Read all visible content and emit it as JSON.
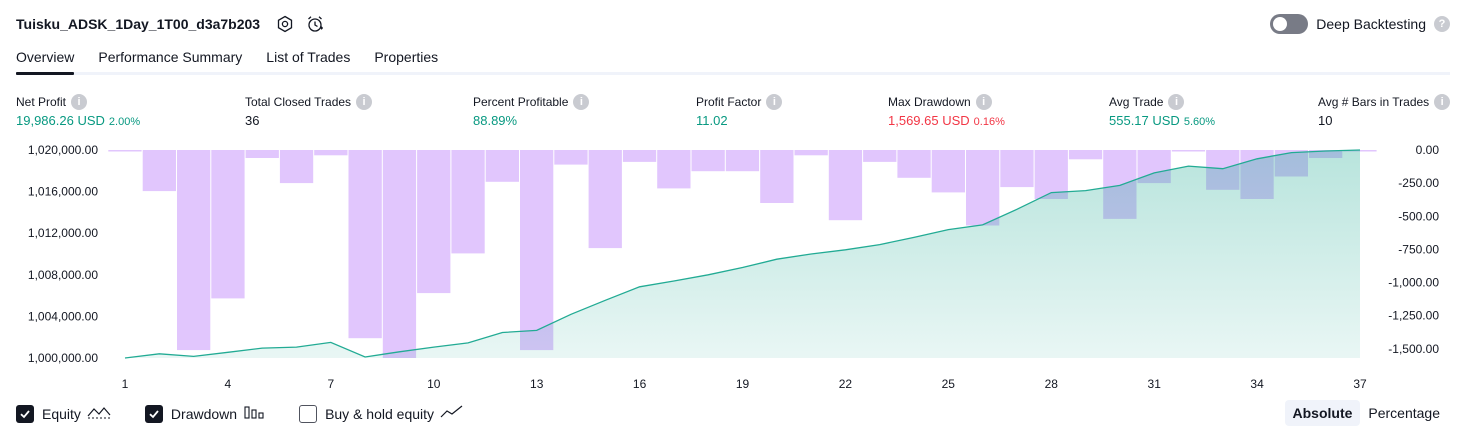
{
  "header": {
    "title": "Tuisku_ADSK_1Day_1T00_d3a7b203",
    "settings_icon": "settings-hexagon-icon",
    "alert_icon": "alarm-clock-icon",
    "deep_backtesting_label": "Deep Backtesting",
    "deep_backtesting_on": false,
    "help_glyph": "?"
  },
  "tabs": [
    {
      "label": "Overview",
      "active": true
    },
    {
      "label": "Performance Summary",
      "active": false
    },
    {
      "label": "List of Trades",
      "active": false
    },
    {
      "label": "Properties",
      "active": false
    }
  ],
  "stats": {
    "net_profit": {
      "label": "Net Profit",
      "value": "19,986.26 USD",
      "pct": "2.00%"
    },
    "total_closed_trades": {
      "label": "Total Closed Trades",
      "value": "36"
    },
    "percent_profitable": {
      "label": "Percent Profitable",
      "value": "88.89%"
    },
    "profit_factor": {
      "label": "Profit Factor",
      "value": "11.02"
    },
    "max_drawdown": {
      "label": "Max Drawdown",
      "value": "1,569.65 USD",
      "pct": "0.16%"
    },
    "avg_trade": {
      "label": "Avg Trade",
      "value": "555.17 USD",
      "pct": "5.60%"
    },
    "avg_bars": {
      "label": "Avg # Bars in Trades",
      "value": "10"
    }
  },
  "colors": {
    "profit_green": "#089981",
    "loss_red": "#f23645",
    "equity_line": "#22ab94",
    "drawdown_bar": "#e1c6fd",
    "text": "#131722"
  },
  "chart_data": {
    "type": "line",
    "x": [
      1,
      2,
      3,
      4,
      5,
      6,
      7,
      8,
      9,
      10,
      11,
      12,
      13,
      14,
      15,
      16,
      17,
      18,
      19,
      20,
      21,
      22,
      23,
      24,
      25,
      26,
      27,
      28,
      29,
      30,
      31,
      32,
      33,
      34,
      35,
      36,
      37
    ],
    "x_ticks": [
      "1",
      "4",
      "7",
      "10",
      "13",
      "16",
      "19",
      "22",
      "25",
      "28",
      "31",
      "34",
      "37"
    ],
    "y_left_ticks": [
      "1,020,000.00",
      "1,016,000.00",
      "1,012,000.00",
      "1,008,000.00",
      "1,004,000.00",
      "1,000,000.00"
    ],
    "y_right_ticks": [
      "0.00",
      "-250.00",
      "-500.00",
      "-750.00",
      "-1,000.00",
      "-1,250.00",
      "-1,500.00"
    ],
    "ylim_left": [
      1000000,
      1020000
    ],
    "ylim_right": [
      -1569.65,
      0
    ],
    "series": [
      {
        "name": "Equity",
        "axis": "left",
        "values": [
          1000000,
          1000400,
          1000150,
          1000550,
          1000950,
          1001050,
          1001500,
          1000100,
          1000600,
          1001050,
          1001450,
          1002450,
          1002650,
          1004200,
          1005550,
          1006850,
          1007400,
          1008000,
          1008700,
          1009500,
          1010000,
          1010400,
          1010900,
          1011600,
          1012350,
          1012800,
          1014300,
          1015900,
          1016100,
          1016600,
          1017800,
          1018450,
          1018200,
          1019150,
          1019750,
          1019900,
          1020000
        ]
      },
      {
        "name": "Drawdown",
        "axis": "right",
        "type": "bar",
        "values": [
          -10,
          -310,
          -1510,
          -1120,
          -60,
          -250,
          -40,
          -1420,
          -1569.65,
          -1080,
          -780,
          -240,
          -1510,
          -110,
          -740,
          -90,
          -290,
          -160,
          -160,
          -400,
          -40,
          -530,
          -90,
          -210,
          -320,
          -570,
          -280,
          -370,
          -70,
          -520,
          -250,
          -10,
          -300,
          -370,
          -200,
          -60,
          0
        ]
      }
    ]
  },
  "legend": [
    {
      "label": "Equity",
      "checked": true,
      "icon": "equity-line-icon"
    },
    {
      "label": "Drawdown",
      "checked": true,
      "icon": "drawdown-bars-icon"
    },
    {
      "label": "Buy & hold equity",
      "checked": false,
      "icon": "buy-hold-line-icon"
    }
  ],
  "scale": {
    "absolute_label": "Absolute",
    "percentage_label": "Percentage",
    "selected": "Absolute"
  }
}
